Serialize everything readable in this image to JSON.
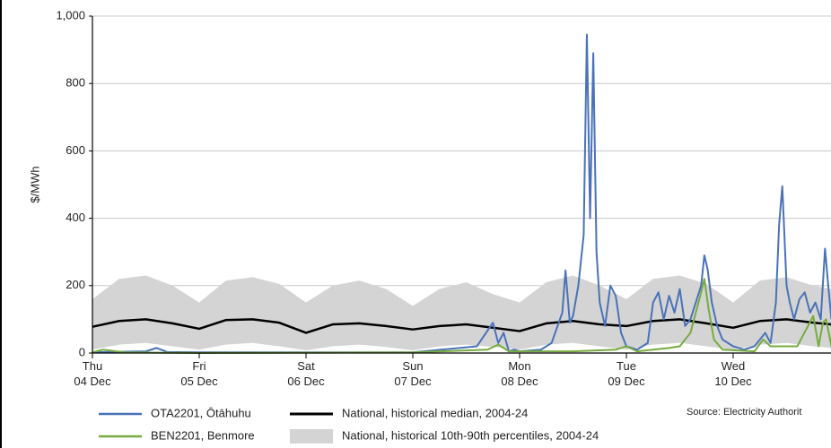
{
  "chart_data": {
    "type": "line",
    "ylabel": "$/MWh",
    "source": "Source: Electricity Authorit",
    "xlim": [
      0,
      6.92
    ],
    "xticks": [
      {
        "value": 0,
        "label": "Thu 04 Dec"
      },
      {
        "value": 1,
        "label": "Fri 05 Dec"
      },
      {
        "value": 2,
        "label": "Sat 06 Dec"
      },
      {
        "value": 3,
        "label": "Sun 07 Dec"
      },
      {
        "value": 4,
        "label": "Mon 08 Dec"
      },
      {
        "value": 5,
        "label": "Tue 09 Dec"
      },
      {
        "value": 6,
        "label": "Wed 10 Dec"
      }
    ],
    "ylim": [
      0,
      1000
    ],
    "yticks": [
      0,
      200,
      400,
      600,
      800,
      {
        "value": 1000,
        "label": "1,000"
      }
    ],
    "grid": true,
    "band": {
      "name": "National, historical 10th-90th percentiles, 2004-24",
      "color": "#d4d4d4",
      "x": [
        0,
        0.25,
        0.5,
        0.75,
        1,
        1.25,
        1.5,
        1.75,
        2,
        2.25,
        2.5,
        2.75,
        3,
        3.25,
        3.5,
        3.75,
        4,
        4.25,
        4.5,
        4.75,
        5,
        5.25,
        5.5,
        5.75,
        6,
        6.25,
        6.5,
        6.75,
        6.92
      ],
      "low": [
        10,
        25,
        30,
        20,
        10,
        25,
        30,
        20,
        8,
        20,
        25,
        18,
        8,
        20,
        25,
        18,
        10,
        25,
        30,
        20,
        10,
        25,
        30,
        20,
        10,
        25,
        30,
        20,
        15
      ],
      "high": [
        160,
        220,
        230,
        200,
        150,
        215,
        225,
        205,
        150,
        200,
        215,
        190,
        140,
        190,
        210,
        175,
        150,
        210,
        230,
        200,
        160,
        220,
        230,
        205,
        150,
        215,
        225,
        200,
        190
      ]
    },
    "series": [
      {
        "name": "National, historical median, 2004-24",
        "color": "#000000",
        "width": 2.5,
        "x": [
          0,
          0.25,
          0.5,
          0.75,
          1,
          1.25,
          1.5,
          1.75,
          2,
          2.25,
          2.5,
          2.75,
          3,
          3.25,
          3.5,
          3.75,
          4,
          4.25,
          4.5,
          4.75,
          5,
          5.25,
          5.5,
          5.75,
          6,
          6.25,
          6.5,
          6.75,
          6.92
        ],
        "values": [
          78,
          95,
          100,
          88,
          72,
          98,
          100,
          90,
          60,
          85,
          88,
          80,
          70,
          80,
          85,
          75,
          65,
          88,
          95,
          85,
          80,
          95,
          100,
          88,
          75,
          95,
          100,
          90,
          85
        ]
      },
      {
        "name": "OTA2201, Ōtāhuhu",
        "color": "#4a72b8",
        "width": 2,
        "x": [
          0,
          0.5,
          0.6,
          0.7,
          1.0,
          2.0,
          3.0,
          3.6,
          3.75,
          3.8,
          3.85,
          3.9,
          3.95,
          4.0,
          4.2,
          4.3,
          4.4,
          4.43,
          4.47,
          4.5,
          4.55,
          4.6,
          4.63,
          4.66,
          4.69,
          4.72,
          4.75,
          4.8,
          4.85,
          4.9,
          4.95,
          5.0,
          5.1,
          5.2,
          5.25,
          5.3,
          5.35,
          5.4,
          5.45,
          5.5,
          5.55,
          5.6,
          5.65,
          5.7,
          5.73,
          5.76,
          5.8,
          5.85,
          5.9,
          6.0,
          6.1,
          6.2,
          6.3,
          6.35,
          6.4,
          6.43,
          6.46,
          6.5,
          6.53,
          6.57,
          6.62,
          6.67,
          6.72,
          6.77,
          6.82,
          6.86,
          6.89,
          6.92
        ],
        "values": [
          2,
          5,
          15,
          3,
          2,
          2,
          2,
          20,
          90,
          30,
          60,
          5,
          10,
          5,
          10,
          30,
          120,
          245,
          90,
          110,
          200,
          350,
          945,
          400,
          890,
          300,
          150,
          80,
          200,
          170,
          60,
          20,
          10,
          30,
          150,
          180,
          100,
          170,
          120,
          190,
          80,
          100,
          150,
          200,
          290,
          250,
          150,
          80,
          40,
          20,
          10,
          20,
          60,
          30,
          150,
          380,
          495,
          200,
          150,
          100,
          160,
          180,
          120,
          150,
          100,
          310,
          200,
          100
        ]
      },
      {
        "name": "BEN2201, Benmore",
        "color": "#77ab3f",
        "width": 2,
        "x": [
          0,
          0.1,
          0.3,
          1.0,
          3.0,
          3.7,
          3.8,
          3.9,
          4.5,
          4.9,
          5.0,
          5.1,
          5.4,
          5.5,
          5.6,
          5.65,
          5.7,
          5.73,
          5.77,
          5.82,
          5.9,
          6.2,
          6.28,
          6.35,
          6.6,
          6.7,
          6.75,
          6.8,
          6.84,
          6.87,
          6.92
        ],
        "values": [
          2,
          10,
          2,
          0,
          2,
          10,
          25,
          5,
          5,
          10,
          20,
          5,
          15,
          20,
          60,
          120,
          180,
          220,
          130,
          40,
          10,
          5,
          40,
          20,
          20,
          80,
          110,
          20,
          90,
          100,
          20
        ]
      }
    ]
  }
}
